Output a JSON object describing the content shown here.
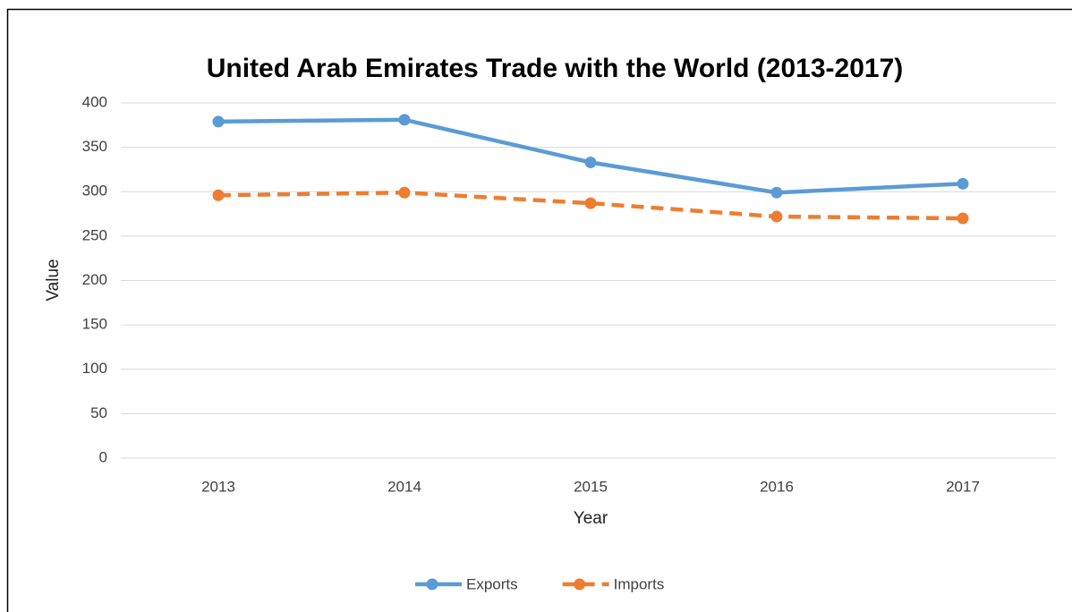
{
  "chart_data": {
    "type": "line",
    "title": "United Arab Emirates Trade with the World (2013-2017)",
    "x_label": "Year",
    "y_label": "Value",
    "categories": [
      "2013",
      "2014",
      "2015",
      "2016",
      "2017"
    ],
    "series": [
      {
        "name": "Exports",
        "color": "#5b9bd5",
        "dash": "solid",
        "values": [
          379,
          381,
          333,
          299,
          309
        ]
      },
      {
        "name": "Imports",
        "color": "#ed7d31",
        "dash": "dashed",
        "values": [
          296,
          299,
          287,
          272,
          270
        ]
      }
    ],
    "ylim": [
      0,
      400
    ],
    "yticks": [
      0,
      50,
      100,
      150,
      200,
      250,
      300,
      350,
      400
    ],
    "grid": true,
    "legend": "bottom"
  }
}
